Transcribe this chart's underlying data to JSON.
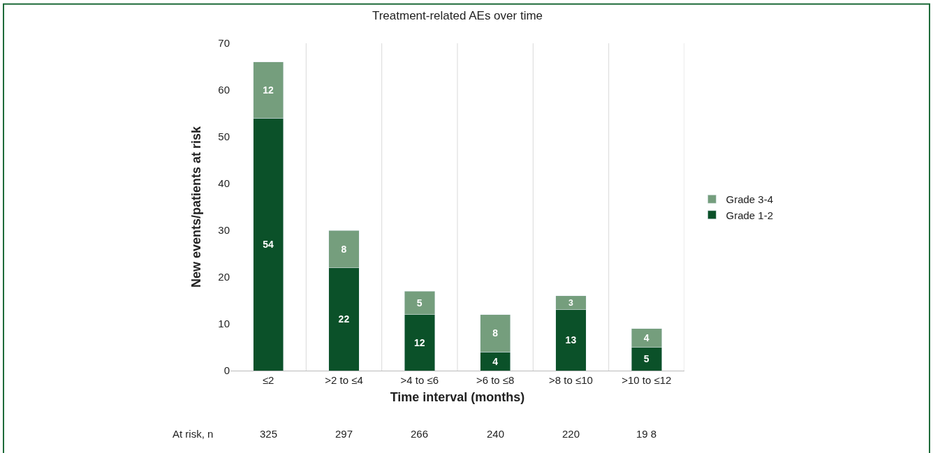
{
  "chart_data": {
    "type": "bar",
    "title": "Treatment-related AEs over time",
    "xlabel": "Time interval (months)",
    "ylabel": "New events/patients at risk",
    "categories": [
      "≤2",
      ">2 to ≤4",
      ">4 to ≤6",
      ">6 to ≤8",
      ">8 to ≤10",
      ">10 to ≤12"
    ],
    "series": [
      {
        "name": "Grade 1-2",
        "color": "#0b5129",
        "values": [
          54,
          22,
          12,
          4,
          13,
          5
        ]
      },
      {
        "name": "Grade 3-4",
        "color": "#759e7d",
        "values": [
          12,
          8,
          5,
          8,
          3,
          4
        ]
      }
    ],
    "stacked": true,
    "data_labels": true,
    "ylim": [
      0,
      70
    ],
    "yticks": [
      0,
      10,
      20,
      30,
      40,
      50,
      60,
      70
    ],
    "grid": "x",
    "legend": "right",
    "annotations": [
      "At risk, n",
      "325",
      "297",
      "266",
      "240",
      "220",
      "19 8"
    ]
  }
}
